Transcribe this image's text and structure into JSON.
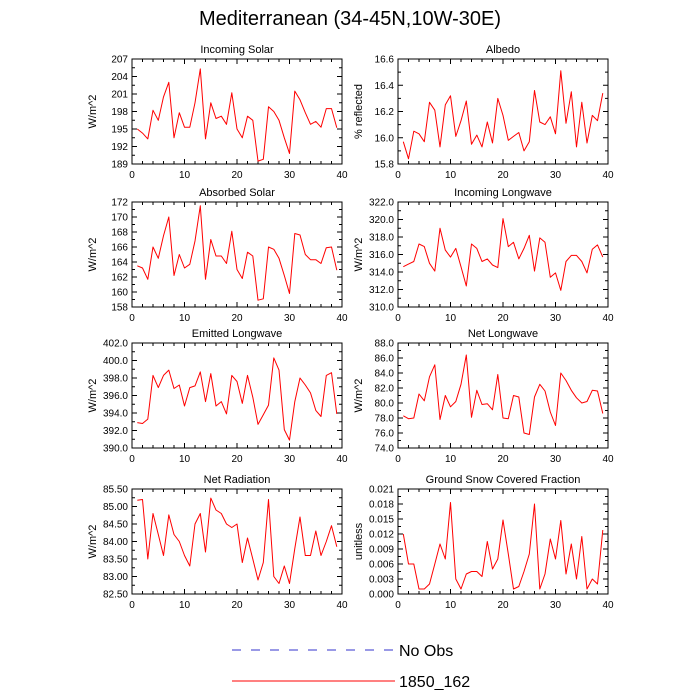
{
  "figure": {
    "title": "Mediterranean (34-45N,10W-30E)",
    "legend": [
      {
        "label": "No Obs",
        "color": "#3333cc",
        "style": "dashed"
      },
      {
        "label": "1850_162",
        "color": "#ff0000",
        "style": "solid"
      }
    ]
  },
  "chart_data": [
    {
      "type": "line",
      "title": "Incoming Solar",
      "ylabel": "W/m^2",
      "xlim": [
        0,
        40
      ],
      "xticks": [
        "0",
        "10",
        "20",
        "30",
        "40"
      ],
      "ylim": [
        189,
        207
      ],
      "yticks": [
        "189",
        "192",
        "195",
        "198",
        "201",
        "204",
        "207"
      ],
      "series": [
        {
          "name": "1850_162",
          "x": [
            1,
            2,
            3,
            4,
            5,
            6,
            7,
            8,
            9,
            10,
            11,
            12,
            13,
            14,
            15,
            16,
            17,
            18,
            19,
            20,
            21,
            22,
            23,
            24,
            25,
            26,
            27,
            28,
            29,
            30,
            31,
            32,
            33,
            34,
            35,
            36,
            37,
            38,
            39
          ],
          "values": [
            195.0,
            194.3,
            193.3,
            198.2,
            196.5,
            200.5,
            203.0,
            193.5,
            197.8,
            195.3,
            195.3,
            199.5,
            205.3,
            193.3,
            199.5,
            196.8,
            197.2,
            195.8,
            201.2,
            195.0,
            193.5,
            197.2,
            196.5,
            189.5,
            189.8,
            198.8,
            198.0,
            196.5,
            193.5,
            190.8,
            201.5,
            200.0,
            197.8,
            195.8,
            196.3,
            195.3,
            198.5,
            198.5,
            195.2
          ]
        }
      ]
    },
    {
      "type": "line",
      "title": "Albedo",
      "ylabel": "% reflected",
      "xlim": [
        0,
        40
      ],
      "xticks": [
        "0",
        "10",
        "20",
        "30",
        "40"
      ],
      "ylim": [
        15.8,
        16.6
      ],
      "yticks": [
        "15.8",
        "16.0",
        "16.2",
        "16.4",
        "16.6"
      ],
      "series": [
        {
          "name": "1850_162",
          "x": [
            1,
            2,
            3,
            4,
            5,
            6,
            7,
            8,
            9,
            10,
            11,
            12,
            13,
            14,
            15,
            16,
            17,
            18,
            19,
            20,
            21,
            22,
            23,
            24,
            25,
            26,
            27,
            28,
            29,
            30,
            31,
            32,
            33,
            34,
            35,
            36,
            37,
            38,
            39
          ],
          "values": [
            15.97,
            15.84,
            16.05,
            16.03,
            15.97,
            16.27,
            16.21,
            15.93,
            16.25,
            16.32,
            16.01,
            16.13,
            16.28,
            15.95,
            16.02,
            15.93,
            16.12,
            15.96,
            16.3,
            16.17,
            15.98,
            16.01,
            16.04,
            15.9,
            15.97,
            16.36,
            16.12,
            16.1,
            16.16,
            16.03,
            16.51,
            16.11,
            16.35,
            15.93,
            16.27,
            15.96,
            16.17,
            16.13,
            16.34
          ]
        }
      ]
    },
    {
      "type": "line",
      "title": "Absorbed Solar",
      "ylabel": "W/m^2",
      "xlim": [
        0,
        40
      ],
      "xticks": [
        "0",
        "10",
        "20",
        "30",
        "40"
      ],
      "ylim": [
        158,
        172
      ],
      "yticks": [
        "158",
        "160",
        "162",
        "164",
        "166",
        "168",
        "170",
        "172"
      ],
      "series": [
        {
          "name": "1850_162",
          "x": [
            1,
            2,
            3,
            4,
            5,
            6,
            7,
            8,
            9,
            10,
            11,
            12,
            13,
            14,
            15,
            16,
            17,
            18,
            19,
            20,
            21,
            22,
            23,
            24,
            25,
            26,
            27,
            28,
            29,
            30,
            31,
            32,
            33,
            34,
            35,
            36,
            37,
            38,
            39
          ],
          "values": [
            163.5,
            163.2,
            161.7,
            166.0,
            164.5,
            167.5,
            170.0,
            162.2,
            165.0,
            163.2,
            163.7,
            166.8,
            171.5,
            161.7,
            167.0,
            164.8,
            164.8,
            163.8,
            168.1,
            163.0,
            161.8,
            165.3,
            164.8,
            158.9,
            159.1,
            166.0,
            165.7,
            164.5,
            162.2,
            159.8,
            167.8,
            167.6,
            165.0,
            164.3,
            164.3,
            163.8,
            165.9,
            166.0,
            162.9
          ]
        }
      ]
    },
    {
      "type": "line",
      "title": "Incoming Longwave",
      "ylabel": "W/m^2",
      "xlim": [
        0,
        40
      ],
      "xticks": [
        "0",
        "10",
        "20",
        "30",
        "40"
      ],
      "ylim": [
        310,
        322
      ],
      "yticks": [
        "310.0",
        "312.0",
        "314.0",
        "316.0",
        "318.0",
        "320.0",
        "322.0"
      ],
      "series": [
        {
          "name": "1850_162",
          "x": [
            1,
            2,
            3,
            4,
            5,
            6,
            7,
            8,
            9,
            10,
            11,
            12,
            13,
            14,
            15,
            16,
            17,
            18,
            19,
            20,
            21,
            22,
            23,
            24,
            25,
            26,
            27,
            28,
            29,
            30,
            31,
            32,
            33,
            34,
            35,
            36,
            37,
            38,
            39
          ],
          "values": [
            314.6,
            314.9,
            315.2,
            317.2,
            316.9,
            315.0,
            314.1,
            319.0,
            316.5,
            315.7,
            316.7,
            314.6,
            312.4,
            317.2,
            316.7,
            315.2,
            315.5,
            314.8,
            314.5,
            320.1,
            316.9,
            317.4,
            315.5,
            316.7,
            318.2,
            314.1,
            317.9,
            317.4,
            313.4,
            313.9,
            311.9,
            315.2,
            315.9,
            315.9,
            315.2,
            313.9,
            316.6,
            317.1,
            315.7
          ]
        }
      ]
    },
    {
      "type": "line",
      "title": "Emitted Longwave",
      "ylabel": "W/m^2",
      "xlim": [
        0,
        40
      ],
      "xticks": [
        "0",
        "10",
        "20",
        "30",
        "40"
      ],
      "ylim": [
        390,
        402
      ],
      "yticks": [
        "390.0",
        "392.0",
        "394.0",
        "396.0",
        "398.0",
        "400.0",
        "402.0"
      ],
      "series": [
        {
          "name": "1850_162",
          "x": [
            1,
            2,
            3,
            4,
            5,
            6,
            7,
            8,
            9,
            10,
            11,
            12,
            13,
            14,
            15,
            16,
            17,
            18,
            19,
            20,
            21,
            22,
            23,
            24,
            25,
            26,
            27,
            28,
            29,
            30,
            31,
            32,
            33,
            34,
            35,
            36,
            37,
            38,
            39
          ],
          "values": [
            392.9,
            392.8,
            393.3,
            398.3,
            396.9,
            398.3,
            398.9,
            396.8,
            397.2,
            394.8,
            396.9,
            397.1,
            398.7,
            395.3,
            398.5,
            394.8,
            395.3,
            393.9,
            398.3,
            397.6,
            395.1,
            398.3,
            395.8,
            392.7,
            393.8,
            394.9,
            400.3,
            398.9,
            392.1,
            390.9,
            395.3,
            398.0,
            397.2,
            396.3,
            394.3,
            393.6,
            398.3,
            398.6,
            393.9
          ]
        }
      ]
    },
    {
      "type": "line",
      "title": "Net Longwave",
      "ylabel": "W/m^2",
      "xlim": [
        0,
        40
      ],
      "xticks": [
        "0",
        "10",
        "20",
        "30",
        "40"
      ],
      "ylim": [
        74,
        88
      ],
      "yticks": [
        "74.0",
        "76.0",
        "78.0",
        "80.0",
        "82.0",
        "84.0",
        "86.0",
        "88.0"
      ],
      "series": [
        {
          "name": "1850_162",
          "x": [
            1,
            2,
            3,
            4,
            5,
            6,
            7,
            8,
            9,
            10,
            11,
            12,
            13,
            14,
            15,
            16,
            17,
            18,
            19,
            20,
            21,
            22,
            23,
            24,
            25,
            26,
            27,
            28,
            29,
            30,
            31,
            32,
            33,
            34,
            35,
            36,
            37,
            38,
            39
          ],
          "values": [
            78.3,
            77.9,
            78.0,
            81.2,
            80.3,
            83.5,
            85.1,
            77.8,
            81.0,
            79.5,
            80.2,
            82.5,
            86.4,
            78.1,
            81.7,
            79.8,
            79.9,
            79.1,
            83.8,
            78.0,
            77.9,
            81.0,
            80.8,
            76.0,
            75.8,
            80.8,
            82.5,
            81.6,
            78.8,
            77.0,
            84.0,
            83.0,
            81.7,
            80.7,
            80.0,
            80.2,
            81.7,
            81.6,
            78.6
          ]
        }
      ]
    },
    {
      "type": "line",
      "title": "Net Radiation",
      "ylabel": "W/m^2",
      "xlim": [
        0,
        40
      ],
      "xticks": [
        "0",
        "10",
        "20",
        "30",
        "40"
      ],
      "ylim": [
        82.5,
        85.5
      ],
      "yticks": [
        "82.50",
        "83.00",
        "83.50",
        "84.00",
        "84.50",
        "85.00",
        "85.50"
      ],
      "series": [
        {
          "name": "1850_162",
          "x": [
            1,
            2,
            3,
            4,
            5,
            6,
            7,
            8,
            9,
            10,
            11,
            12,
            13,
            14,
            15,
            16,
            17,
            18,
            19,
            20,
            21,
            22,
            23,
            24,
            25,
            26,
            27,
            28,
            29,
            30,
            31,
            32,
            33,
            34,
            35,
            36,
            37,
            38,
            39
          ],
          "values": [
            85.18,
            85.2,
            83.5,
            84.8,
            84.2,
            83.6,
            84.76,
            84.2,
            84.0,
            83.6,
            83.3,
            84.5,
            84.8,
            83.7,
            85.24,
            84.9,
            84.8,
            84.5,
            84.4,
            84.5,
            83.4,
            84.1,
            83.5,
            82.9,
            83.4,
            85.2,
            83.0,
            82.8,
            83.3,
            82.8,
            83.8,
            84.7,
            83.6,
            83.6,
            84.3,
            83.6,
            84.0,
            84.45,
            83.85
          ]
        }
      ]
    },
    {
      "type": "line",
      "title": "Ground Snow Covered Fraction",
      "ylabel": "unitless",
      "xlim": [
        0,
        40
      ],
      "xticks": [
        "0",
        "10",
        "20",
        "30",
        "40"
      ],
      "ylim": [
        0,
        0.021
      ],
      "yticks": [
        "0.000",
        "0.003",
        "0.006",
        "0.009",
        "0.012",
        "0.015",
        "0.018",
        "0.021"
      ],
      "series": [
        {
          "name": "1850_162",
          "x": [
            1,
            2,
            3,
            4,
            5,
            6,
            7,
            8,
            9,
            10,
            11,
            12,
            13,
            14,
            15,
            16,
            17,
            18,
            19,
            20,
            21,
            22,
            23,
            24,
            25,
            26,
            27,
            28,
            29,
            30,
            31,
            32,
            33,
            34,
            35,
            36,
            37,
            38,
            39
          ],
          "values": [
            0.012,
            0.006,
            0.006,
            0.001,
            0.001,
            0.002,
            0.006,
            0.01,
            0.007,
            0.0183,
            0.003,
            0.001,
            0.004,
            0.0045,
            0.0045,
            0.0035,
            0.0105,
            0.005,
            0.007,
            0.0148,
            0.008,
            0.001,
            0.0015,
            0.0045,
            0.008,
            0.018,
            0.001,
            0.004,
            0.011,
            0.007,
            0.0147,
            0.004,
            0.01,
            0.003,
            0.0115,
            0.001,
            0.003,
            0.002,
            0.0128
          ]
        }
      ]
    }
  ]
}
